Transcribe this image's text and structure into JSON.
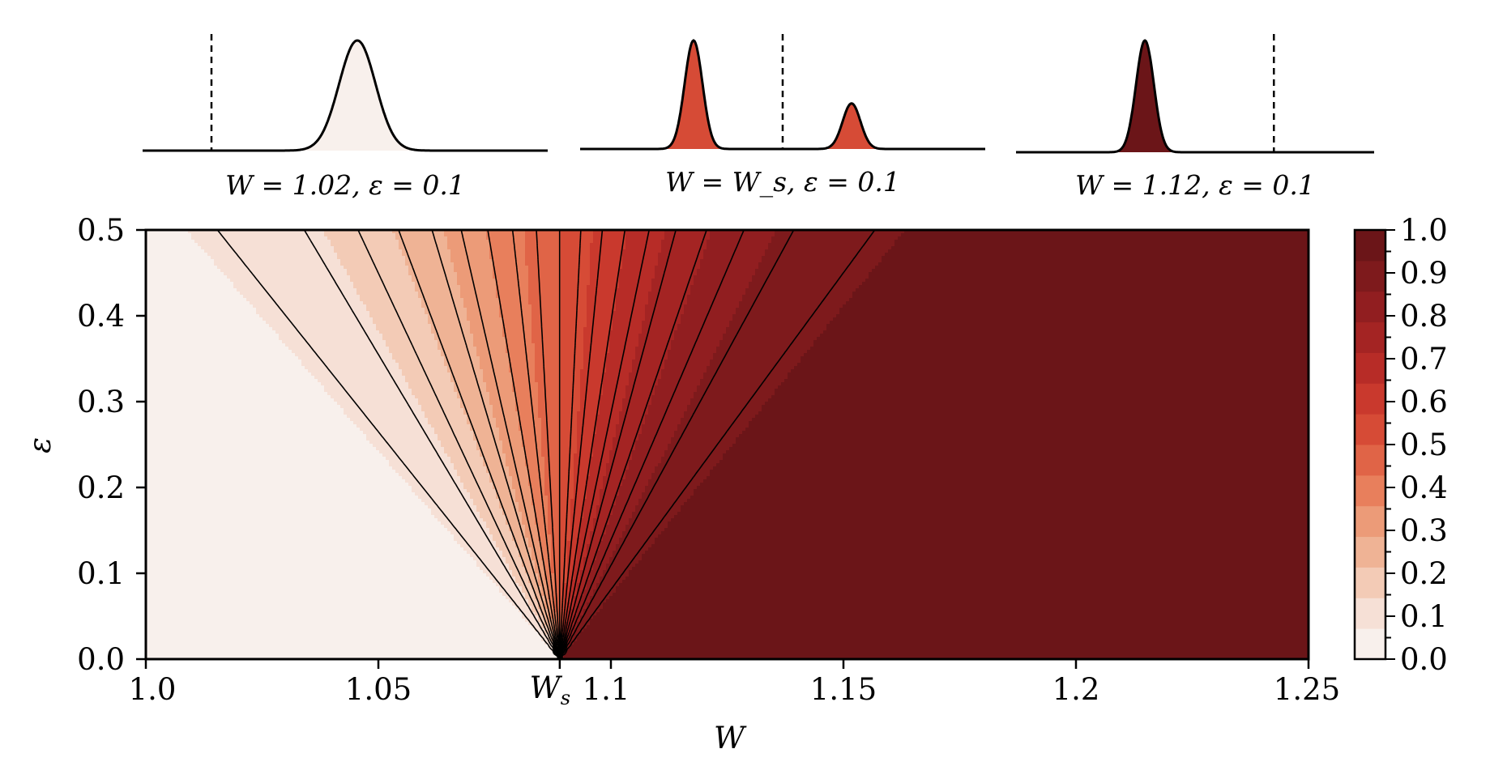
{
  "chart_data": [
    {
      "type": "area",
      "description_kind": "distribution inset",
      "caption": "W = 1.02,  ε = 0.1",
      "peaks": [
        {
          "center": 0.53,
          "height": 1.0,
          "width": 0.045
        }
      ],
      "threshold_line": 0.17,
      "fill_value": 0.0
    },
    {
      "type": "area",
      "description_kind": "distribution inset",
      "caption": "W = W_s,  ε = 0.1",
      "peaks": [
        {
          "center": 0.28,
          "height": 1.0,
          "width": 0.022
        },
        {
          "center": 0.67,
          "height": 0.42,
          "width": 0.022
        }
      ],
      "threshold_line": 0.5,
      "fill_value": 0.5
    },
    {
      "type": "area",
      "description_kind": "distribution inset",
      "caption": "W = 1.12,  ε = 0.1",
      "peaks": [
        {
          "center": 0.36,
          "height": 1.0,
          "width": 0.025
        }
      ],
      "threshold_line": 0.72,
      "fill_value": 1.0
    },
    {
      "type": "heatmap",
      "xlabel": "W",
      "ylabel": "ε",
      "xlim": [
        1.0,
        1.25
      ],
      "ylim": [
        0.0,
        0.5
      ],
      "x_tick_values": [
        1.0,
        1.05,
        1.1,
        1.15,
        1.2,
        1.25
      ],
      "x_tick_labels": [
        "1.0",
        "1.05",
        "1.1",
        "1.15",
        "1.2",
        "1.25"
      ],
      "ws_value": 1.089,
      "ws_label": "W_s",
      "y_tick_values": [
        0.0,
        0.1,
        0.2,
        0.3,
        0.4,
        0.5
      ],
      "y_tick_labels": [
        "0.0",
        "0.1",
        "0.2",
        "0.3",
        "0.4",
        "0.5"
      ],
      "contour_levels": [
        0.05,
        0.1,
        0.15,
        0.2,
        0.25,
        0.3,
        0.35,
        0.4,
        0.45,
        0.5,
        0.55,
        0.6,
        0.65,
        0.7,
        0.75,
        0.8,
        0.85,
        0.9,
        0.95
      ],
      "colormap": "Reds"
    }
  ],
  "colorbar": {
    "tick_values": [
      0.0,
      0.1,
      0.2,
      0.3,
      0.4,
      0.5,
      0.6,
      0.7,
      0.8,
      0.9,
      1.0
    ],
    "tick_labels": [
      "0.0",
      "0.1",
      "0.2",
      "0.3",
      "0.4",
      "0.5",
      "0.6",
      "0.7",
      "0.8",
      "0.9",
      "1.0"
    ]
  },
  "colors": {
    "band_0": "#f8f0ec",
    "band_1": "#f6e0d6",
    "band_2": "#f3cbb6",
    "band_3": "#efb395",
    "band_4": "#ec9b78",
    "band_5": "#e87f5c",
    "band_6": "#e06447",
    "band_7": "#d64b36",
    "band_8": "#c9392d",
    "band_9": "#b72c27",
    "band_10": "#a42423",
    "band_11": "#911e20",
    "band_12": "#7e1a1c",
    "band_13": "#6b1518"
  }
}
